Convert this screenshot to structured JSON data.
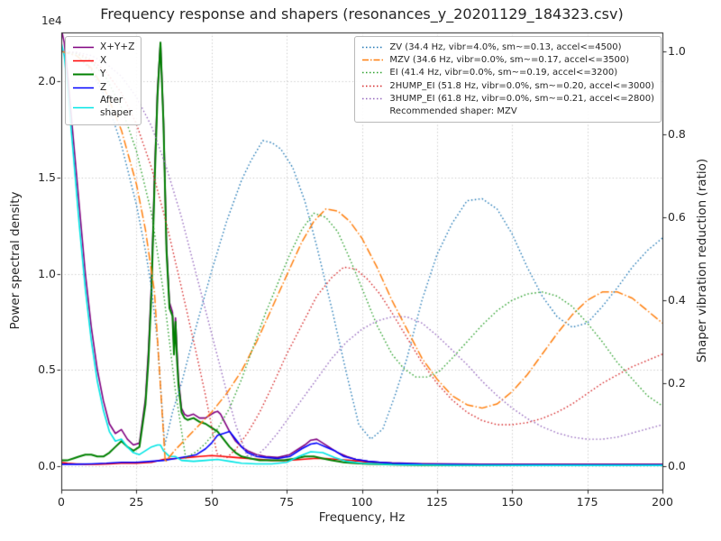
{
  "figure": {
    "title": "Frequency response and shapers (resonances_y_20201129_184323.csv)",
    "offset_label": "1e4",
    "xlabel": "Frequency, Hz",
    "ylabel_left": "Power spectral density",
    "ylabel_right": "Shaper vibration reduction (ratio)"
  },
  "legend_psd": {
    "items": [
      {
        "label": "X+Y+Z",
        "color": "#800080",
        "dash": "solid",
        "width": 1.6
      },
      {
        "label": "X",
        "color": "#ff0000",
        "dash": "solid",
        "width": 1.6
      },
      {
        "label": "Y",
        "color": "#008000",
        "dash": "solid",
        "width": 2
      },
      {
        "label": "Z",
        "color": "#0000ff",
        "dash": "solid",
        "width": 1.6
      },
      {
        "label": "After\nshaper",
        "color": "#00e5e5",
        "dash": "solid",
        "width": 1.6
      }
    ]
  },
  "legend_shapers": {
    "items": [
      {
        "label": "ZV (34.4 Hz, vibr=4.0%, sm~=0.13, accel<=4500)",
        "color": "#1f77b4",
        "dash": "dotted",
        "width": 1.4
      },
      {
        "label": "MZV (34.6 Hz, vibr=0.0%, sm~=0.17, accel<=3500)",
        "color": "#ff7f0e",
        "dash": "dashdot",
        "width": 1.5
      },
      {
        "label": "EI (41.4 Hz, vibr=0.0%, sm~=0.19, accel<=3200)",
        "color": "#2ca02c",
        "dash": "dotted",
        "width": 1.4
      },
      {
        "label": "2HUMP_EI (51.8 Hz, vibr=0.0%, sm~=0.20, accel<=3000)",
        "color": "#d62728",
        "dash": "dotted",
        "width": 1.4
      },
      {
        "label": "3HUMP_EI (61.8 Hz, vibr=0.0%, sm~=0.21, accel<=2800)",
        "color": "#9467bd",
        "dash": "dotted",
        "width": 1.4
      }
    ],
    "note": "Recommended shaper: MZV"
  },
  "chart_data": {
    "type": "line",
    "title": "Frequency response and shapers (resonances_y_20201129_184323.csv)",
    "xlabel": "Frequency, Hz",
    "ylabel": "Power spectral density",
    "ylabel_right": "Shaper vibration reduction (ratio)",
    "psd_unit": "1e4",
    "recommended_shaper": "MZV",
    "grid": true,
    "xlim": [
      0,
      200
    ],
    "ylim_left": [
      -0.1218,
      2.253
    ],
    "ylim_right": [
      -0.0565,
      1.0457
    ],
    "xticks": {
      "values": [
        0,
        25,
        50,
        75,
        100,
        125,
        150,
        175,
        200
      ],
      "labels": [
        "0",
        "25",
        "50",
        "75",
        "100",
        "125",
        "150",
        "175",
        "200"
      ]
    },
    "yticks_left": {
      "values": [
        0,
        0.5,
        1.0,
        1.5,
        2.0
      ],
      "labels": [
        "0.0",
        "0.5",
        "1.0",
        "1.5",
        "2.0"
      ]
    },
    "yticks_right": {
      "values": [
        0,
        0.2,
        0.4,
        0.6,
        0.8,
        1.0
      ],
      "labels": [
        "0.0",
        "0.2",
        "0.4",
        "0.6",
        "0.8",
        "1.0"
      ]
    },
    "series": [
      {
        "name": "X+Y+Z",
        "axis": "left",
        "color": "#800080",
        "dash": "solid",
        "width": 1.6,
        "x": [
          0,
          1,
          2,
          4,
          6,
          8,
          10,
          12,
          14,
          16,
          18,
          20,
          22,
          24,
          26,
          28,
          29,
          30,
          31,
          32,
          33,
          34,
          35,
          36,
          37,
          37.5,
          38,
          38.5,
          39,
          40,
          41,
          42,
          44,
          46,
          48,
          50,
          51,
          52,
          53,
          54,
          56,
          58,
          60,
          62,
          65,
          68,
          72,
          76,
          79,
          81,
          83,
          85,
          87,
          89,
          92,
          95,
          98,
          102,
          106,
          110,
          120,
          140,
          160,
          180,
          200
        ],
        "y": [
          2.27,
          2.2,
          2.05,
          1.7,
          1.35,
          1.0,
          0.72,
          0.5,
          0.34,
          0.22,
          0.17,
          0.19,
          0.14,
          0.11,
          0.12,
          0.35,
          0.6,
          0.95,
          1.5,
          1.95,
          2.2,
          1.8,
          1.15,
          0.85,
          0.8,
          0.6,
          0.77,
          0.6,
          0.45,
          0.3,
          0.27,
          0.26,
          0.27,
          0.25,
          0.25,
          0.27,
          0.28,
          0.285,
          0.27,
          0.24,
          0.18,
          0.13,
          0.1,
          0.08,
          0.06,
          0.05,
          0.045,
          0.06,
          0.09,
          0.11,
          0.135,
          0.14,
          0.12,
          0.1,
          0.07,
          0.05,
          0.035,
          0.025,
          0.02,
          0.017,
          0.013,
          0.01,
          0.01,
          0.01,
          0.01
        ]
      },
      {
        "name": "X",
        "axis": "left",
        "color": "#ff0000",
        "dash": "solid",
        "width": 1.6,
        "x": [
          0,
          2,
          5,
          8,
          12,
          16,
          20,
          25,
          30,
          34,
          38,
          42,
          46,
          50,
          54,
          58,
          62,
          66,
          70,
          75,
          80,
          84,
          88,
          92,
          96,
          100,
          105,
          110,
          120,
          140,
          160,
          180,
          200
        ],
        "y": [
          0.02,
          0.015,
          0.012,
          0.01,
          0.01,
          0.012,
          0.015,
          0.015,
          0.02,
          0.035,
          0.04,
          0.045,
          0.05,
          0.055,
          0.05,
          0.045,
          0.04,
          0.035,
          0.03,
          0.03,
          0.035,
          0.04,
          0.04,
          0.035,
          0.03,
          0.025,
          0.015,
          0.012,
          0.01,
          0.008,
          0.007,
          0.007,
          0.007
        ]
      },
      {
        "name": "Y",
        "axis": "left",
        "color": "#008000",
        "dash": "solid",
        "width": 2,
        "x": [
          0,
          2,
          4,
          6,
          8,
          10,
          12,
          14,
          16,
          18,
          20,
          22,
          24,
          26,
          28,
          29,
          30,
          31,
          32,
          33,
          34,
          35,
          36,
          37,
          37.5,
          38,
          38.5,
          39,
          40,
          41,
          42,
          44,
          46,
          48,
          50,
          52,
          54,
          56,
          58,
          60,
          63,
          66,
          70,
          74,
          78,
          81,
          84,
          87,
          90,
          94,
          98,
          102,
          106,
          110,
          120,
          140,
          160,
          180,
          200
        ],
        "y": [
          0.03,
          0.03,
          0.04,
          0.05,
          0.06,
          0.06,
          0.05,
          0.05,
          0.07,
          0.1,
          0.13,
          0.1,
          0.08,
          0.1,
          0.32,
          0.55,
          0.9,
          1.45,
          1.92,
          2.2,
          1.78,
          1.12,
          0.82,
          0.78,
          0.58,
          0.75,
          0.55,
          0.42,
          0.28,
          0.25,
          0.24,
          0.25,
          0.23,
          0.22,
          0.2,
          0.18,
          0.14,
          0.1,
          0.07,
          0.05,
          0.04,
          0.03,
          0.03,
          0.03,
          0.04,
          0.05,
          0.05,
          0.04,
          0.03,
          0.02,
          0.015,
          0.012,
          0.01,
          0.008,
          0.006,
          0.005,
          0.005,
          0.005,
          0.005
        ]
      },
      {
        "name": "Z",
        "axis": "left",
        "color": "#0000ff",
        "dash": "solid",
        "width": 1.6,
        "x": [
          0,
          5,
          10,
          15,
          20,
          25,
          30,
          34,
          38,
          42,
          45,
          48,
          50,
          52,
          54,
          56,
          58,
          60,
          62,
          65,
          68,
          72,
          76,
          80,
          83,
          85,
          88,
          91,
          94,
          98,
          102,
          106,
          110,
          120,
          140,
          170,
          200
        ],
        "y": [
          0.01,
          0.01,
          0.012,
          0.015,
          0.02,
          0.02,
          0.025,
          0.03,
          0.04,
          0.05,
          0.06,
          0.09,
          0.12,
          0.16,
          0.17,
          0.18,
          0.14,
          0.1,
          0.07,
          0.05,
          0.045,
          0.04,
          0.05,
          0.09,
          0.115,
          0.12,
          0.1,
          0.08,
          0.05,
          0.035,
          0.025,
          0.02,
          0.015,
          0.01,
          0.008,
          0.007,
          0.007
        ]
      },
      {
        "name": "After shaper",
        "axis": "left",
        "color": "#00e5e5",
        "dash": "solid",
        "width": 1.6,
        "x": [
          0,
          1,
          2,
          4,
          6,
          8,
          10,
          12,
          14,
          16,
          18,
          20,
          22,
          24,
          26,
          28,
          30,
          32,
          33,
          34,
          36,
          38,
          40,
          44,
          48,
          52,
          56,
          60,
          65,
          70,
          75,
          79,
          83,
          87,
          91,
          95,
          100,
          110,
          130,
          160,
          200
        ],
        "y": [
          2.2,
          2.13,
          1.98,
          1.62,
          1.25,
          0.92,
          0.65,
          0.44,
          0.29,
          0.18,
          0.13,
          0.14,
          0.1,
          0.07,
          0.06,
          0.08,
          0.1,
          0.11,
          0.11,
          0.08,
          0.05,
          0.05,
          0.03,
          0.025,
          0.03,
          0.035,
          0.025,
          0.015,
          0.012,
          0.012,
          0.02,
          0.05,
          0.075,
          0.07,
          0.045,
          0.025,
          0.015,
          0.008,
          0.005,
          0.004,
          0.004
        ]
      },
      {
        "name": "ZV",
        "axis": "right",
        "color": "#1f77b4",
        "dash": "dotted",
        "width": 1.4,
        "x": [
          0,
          5,
          10,
          15,
          20,
          25,
          28,
          30,
          32,
          34.4,
          37,
          40,
          45,
          50,
          55,
          60,
          63,
          67,
          70,
          73,
          77,
          81,
          85,
          90,
          95,
          99,
          103,
          107,
          111,
          115,
          120,
          125,
          130,
          135,
          140,
          145,
          150,
          155,
          160,
          165,
          170,
          175,
          180,
          185,
          190,
          195,
          200
        ],
        "y": [
          1.0,
          0.99,
          0.955,
          0.885,
          0.775,
          0.63,
          0.52,
          0.43,
          0.3,
          0.05,
          0.13,
          0.2,
          0.34,
          0.47,
          0.59,
          0.69,
          0.735,
          0.785,
          0.78,
          0.765,
          0.72,
          0.64,
          0.53,
          0.38,
          0.22,
          0.1,
          0.065,
          0.09,
          0.17,
          0.26,
          0.4,
          0.51,
          0.585,
          0.64,
          0.645,
          0.62,
          0.56,
          0.48,
          0.41,
          0.36,
          0.335,
          0.345,
          0.385,
          0.43,
          0.48,
          0.52,
          0.55
        ]
      },
      {
        "name": "MZV",
        "axis": "right",
        "color": "#ff7f0e",
        "dash": "dashdot",
        "width": 1.5,
        "x": [
          0,
          5,
          10,
          15,
          20,
          25,
          28,
          31,
          34.6,
          38,
          42,
          46,
          50,
          55,
          60,
          65,
          70,
          75,
          80,
          84,
          88,
          92,
          96,
          100,
          105,
          110,
          115,
          120,
          125,
          130,
          135,
          140,
          145,
          150,
          155,
          160,
          165,
          170,
          175,
          180,
          185,
          190,
          195,
          200
        ],
        "y": [
          1.0,
          0.99,
          0.96,
          0.9,
          0.81,
          0.68,
          0.57,
          0.42,
          0.01,
          0.04,
          0.07,
          0.1,
          0.13,
          0.175,
          0.23,
          0.3,
          0.38,
          0.46,
          0.54,
          0.59,
          0.62,
          0.615,
          0.59,
          0.55,
          0.48,
          0.4,
          0.33,
          0.26,
          0.21,
          0.17,
          0.148,
          0.14,
          0.15,
          0.18,
          0.22,
          0.27,
          0.32,
          0.365,
          0.4,
          0.42,
          0.42,
          0.405,
          0.375,
          0.345
        ]
      },
      {
        "name": "EI",
        "axis": "right",
        "color": "#2ca02c",
        "dash": "dotted",
        "width": 1.4,
        "x": [
          0,
          5,
          10,
          15,
          20,
          25,
          30,
          34,
          38,
          41.4,
          45,
          48,
          52,
          56,
          60,
          64,
          68,
          72,
          76,
          80,
          84,
          88,
          92,
          96,
          100,
          105,
          110,
          114,
          118,
          122,
          126,
          130,
          135,
          140,
          145,
          150,
          155,
          160,
          165,
          170,
          175,
          180,
          185,
          190,
          195,
          200
        ],
        "y": [
          1.0,
          0.995,
          0.975,
          0.935,
          0.865,
          0.76,
          0.61,
          0.42,
          0.18,
          0.02,
          0.035,
          0.055,
          0.09,
          0.14,
          0.21,
          0.29,
          0.37,
          0.44,
          0.51,
          0.57,
          0.61,
          0.6,
          0.565,
          0.5,
          0.43,
          0.34,
          0.27,
          0.235,
          0.215,
          0.215,
          0.23,
          0.26,
          0.3,
          0.34,
          0.375,
          0.4,
          0.415,
          0.42,
          0.41,
          0.385,
          0.345,
          0.3,
          0.25,
          0.21,
          0.17,
          0.145
        ]
      },
      {
        "name": "2HUMP_EI",
        "axis": "right",
        "color": "#d62728",
        "dash": "dotted",
        "width": 1.4,
        "x": [
          0,
          5,
          10,
          15,
          20,
          25,
          30,
          35,
          40,
          45,
          48,
          51.8,
          55,
          58,
          62,
          66,
          70,
          75,
          80,
          85,
          90,
          94,
          98,
          102,
          106,
          110,
          115,
          120,
          125,
          130,
          135,
          140,
          145,
          150,
          155,
          160,
          165,
          170,
          175,
          180,
          185,
          190,
          195,
          200
        ],
        "y": [
          1.0,
          0.997,
          0.98,
          0.95,
          0.9,
          0.825,
          0.72,
          0.585,
          0.43,
          0.27,
          0.17,
          0.03,
          0.02,
          0.04,
          0.08,
          0.13,
          0.19,
          0.27,
          0.34,
          0.41,
          0.455,
          0.48,
          0.475,
          0.45,
          0.415,
          0.37,
          0.31,
          0.25,
          0.2,
          0.16,
          0.13,
          0.11,
          0.1,
          0.1,
          0.105,
          0.115,
          0.13,
          0.15,
          0.175,
          0.2,
          0.22,
          0.24,
          0.255,
          0.27
        ]
      },
      {
        "name": "3HUMP_EI",
        "axis": "right",
        "color": "#9467bd",
        "dash": "dotted",
        "width": 1.4,
        "x": [
          0,
          5,
          10,
          15,
          20,
          25,
          30,
          35,
          40,
          45,
          50,
          55,
          58,
          61.8,
          65,
          68,
          72,
          76,
          80,
          85,
          90,
          95,
          100,
          105,
          110,
          115,
          120,
          125,
          130,
          135,
          140,
          145,
          150,
          155,
          160,
          165,
          170,
          175,
          180,
          185,
          190,
          195,
          200
        ],
        "y": [
          1.0,
          0.998,
          0.99,
          0.97,
          0.94,
          0.89,
          0.82,
          0.72,
          0.6,
          0.46,
          0.32,
          0.18,
          0.1,
          0.025,
          0.025,
          0.045,
          0.08,
          0.12,
          0.16,
          0.21,
          0.26,
          0.3,
          0.33,
          0.35,
          0.36,
          0.36,
          0.345,
          0.315,
          0.28,
          0.245,
          0.205,
          0.17,
          0.14,
          0.115,
          0.095,
          0.08,
          0.07,
          0.065,
          0.065,
          0.07,
          0.08,
          0.09,
          0.1
        ]
      }
    ]
  }
}
